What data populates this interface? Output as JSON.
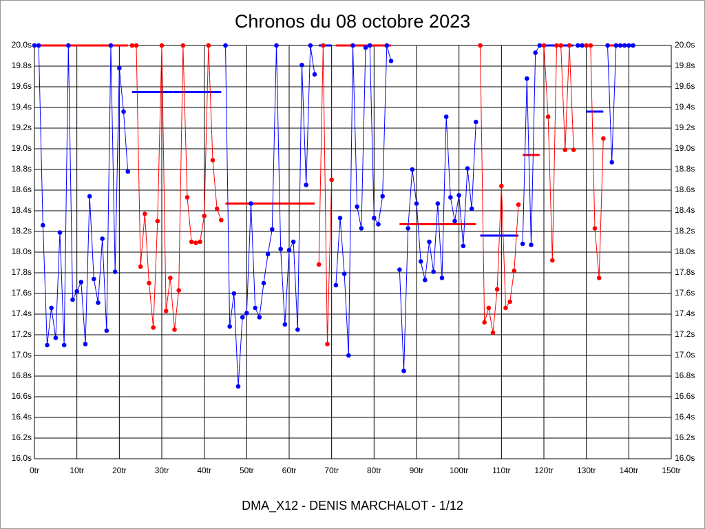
{
  "chart_data": {
    "type": "line",
    "title": "Chronos du 08 octobre 2023",
    "x_label": "DMA_X12 - DENIS MARCHALOT - 1/12",
    "xlim": [
      0,
      150
    ],
    "xticks": [
      {
        "value": 0,
        "label": "0tr"
      },
      {
        "value": 10,
        "label": "10tr"
      },
      {
        "value": 20,
        "label": "20tr"
      },
      {
        "value": 30,
        "label": "30tr"
      },
      {
        "value": 40,
        "label": "40tr"
      },
      {
        "value": 50,
        "label": "50tr"
      },
      {
        "value": 60,
        "label": "60tr"
      },
      {
        "value": 70,
        "label": "70tr"
      },
      {
        "value": 80,
        "label": "80tr"
      },
      {
        "value": 90,
        "label": "90tr"
      },
      {
        "value": 100,
        "label": "100tr"
      },
      {
        "value": 110,
        "label": "110tr"
      },
      {
        "value": 120,
        "label": "120tr"
      },
      {
        "value": 130,
        "label": "130tr"
      },
      {
        "value": 140,
        "label": "140tr"
      },
      {
        "value": 150,
        "label": "150tr"
      }
    ],
    "ylim": [
      16,
      20
    ],
    "yticks": [
      {
        "value": 16,
        "label": "16.0s"
      },
      {
        "value": 16.2,
        "label": "16.2s"
      },
      {
        "value": 16.4,
        "label": "16.4s"
      },
      {
        "value": 16.6,
        "label": "16.6s"
      },
      {
        "value": 16.8,
        "label": "16.8s"
      },
      {
        "value": 17,
        "label": "17.0s"
      },
      {
        "value": 17.2,
        "label": "17.2s"
      },
      {
        "value": 17.4,
        "label": "17.4s"
      },
      {
        "value": 17.6,
        "label": "17.6s"
      },
      {
        "value": 17.8,
        "label": "17.8s"
      },
      {
        "value": 18,
        "label": "18.0s"
      },
      {
        "value": 18.2,
        "label": "18.2s"
      },
      {
        "value": 18.4,
        "label": "18.4s"
      },
      {
        "value": 18.6,
        "label": "18.6s"
      },
      {
        "value": 18.8,
        "label": "18.8s"
      },
      {
        "value": 19,
        "label": "19.0s"
      },
      {
        "value": 19.2,
        "label": "19.2s"
      },
      {
        "value": 19.4,
        "label": "19.4s"
      },
      {
        "value": 19.6,
        "label": "19.6s"
      },
      {
        "value": 19.8,
        "label": "19.8s"
      },
      {
        "value": 20,
        "label": "20.0s"
      }
    ],
    "grid": true,
    "series": [
      {
        "color": "#0000ff",
        "mean": 20,
        "mean_color": "#ff0000",
        "x": [
          0,
          1,
          2,
          3,
          4,
          5,
          6,
          7,
          8,
          9,
          10,
          11,
          12,
          13,
          14,
          15,
          16,
          17,
          18,
          19,
          20,
          21,
          22
        ],
        "values": [
          20,
          20,
          18.26,
          17.1,
          17.46,
          17.17,
          18.19,
          17.1,
          20,
          17.54,
          17.62,
          17.71,
          17.11,
          18.54,
          17.74,
          17.51,
          18.13,
          17.24,
          20,
          17.81,
          19.78,
          19.36,
          18.78
        ]
      },
      {
        "color": "#ff0000",
        "mean": 19.55,
        "mean_color": "#0000ff",
        "x": [
          23,
          24,
          25,
          26,
          27,
          28,
          29,
          30,
          31,
          32,
          33,
          34,
          35,
          36,
          37,
          38,
          39,
          40,
          41,
          42,
          43,
          44
        ],
        "values": [
          20,
          20,
          17.86,
          18.37,
          17.7,
          17.27,
          18.3,
          20,
          17.43,
          17.75,
          17.25,
          17.63,
          20,
          18.53,
          18.1,
          18.09,
          18.1,
          18.35,
          20,
          18.89,
          18.42,
          18.31
        ]
      },
      {
        "color": "#0000ff",
        "mean": 18.47,
        "mean_color": "#ff0000",
        "x": [
          45,
          46,
          47,
          48,
          49,
          50,
          51,
          52,
          53,
          54,
          55,
          56,
          57,
          58,
          59,
          60,
          61,
          62,
          63,
          64,
          65,
          66
        ],
        "values": [
          20,
          17.28,
          17.6,
          16.7,
          17.37,
          17.41,
          18.47,
          17.46,
          17.37,
          17.7,
          17.98,
          18.22,
          20,
          18.03,
          17.3,
          18.02,
          18.1,
          17.25,
          19.81,
          18.65,
          20,
          19.72
        ]
      },
      {
        "color": "#ff0000",
        "mean": 20,
        "mean_color": "#0000ff",
        "x": [
          67,
          68,
          69,
          70
        ],
        "values": [
          17.88,
          20,
          17.11,
          18.7
        ]
      },
      {
        "color": "#0000ff",
        "mean": 20,
        "mean_color": "#ff0000",
        "x": [
          71,
          72,
          73,
          74,
          75,
          76,
          77,
          78,
          79,
          80,
          81,
          82,
          83,
          84
        ],
        "values": [
          17.68,
          18.33,
          17.79,
          17,
          20,
          18.44,
          18.23,
          19.98,
          20,
          18.33,
          18.27,
          18.54,
          20,
          19.85
        ]
      },
      {
        "color": "#0000ff",
        "mean": 18.27,
        "mean_color": "#ff0000",
        "x": [
          86,
          87,
          88,
          89,
          90,
          91,
          92,
          93,
          94,
          95,
          96,
          97,
          98,
          99,
          100,
          101,
          102,
          103,
          104
        ],
        "values": [
          17.83,
          16.85,
          18.23,
          18.8,
          18.47,
          17.91,
          17.73,
          18.1,
          17.81,
          18.47,
          17.75,
          19.31,
          18.53,
          18.3,
          18.55,
          18.06,
          18.81,
          18.42,
          19.26
        ]
      },
      {
        "color": "#ff0000",
        "mean": 18.16,
        "mean_color": "#0000ff",
        "x": [
          105,
          106,
          107,
          108,
          109,
          110,
          111,
          112,
          113,
          114
        ],
        "values": [
          20,
          17.32,
          17.46,
          17.22,
          17.64,
          18.64,
          17.46,
          17.52,
          17.82,
          18.46
        ]
      },
      {
        "color": "#0000ff",
        "mean": 18.94,
        "mean_color": "#ff0000",
        "x": [
          115,
          116,
          117,
          118,
          119
        ],
        "values": [
          18.08,
          19.68,
          18.07,
          19.93,
          20
        ]
      },
      {
        "color": "#ff0000",
        "mean": 20,
        "mean_color": "#0000ff",
        "x": [
          120,
          121,
          122,
          123,
          124,
          125,
          126,
          127
        ],
        "values": [
          20,
          19.31,
          17.92,
          20,
          20,
          18.99,
          20,
          18.99
        ]
      },
      {
        "color": "#0000ff",
        "x": [
          128,
          129
        ],
        "values": [
          20,
          20
        ]
      },
      {
        "color": "#ff0000",
        "mean": 19.36,
        "mean_color": "#0000ff",
        "x": [
          130,
          131,
          132,
          133,
          134
        ],
        "values": [
          20,
          20,
          18.23,
          17.75,
          19.1
        ]
      },
      {
        "color": "#0000ff",
        "mean": 20,
        "mean_color": "#ff0000",
        "x": [
          135,
          136,
          137,
          138,
          139,
          140,
          141
        ],
        "values": [
          20,
          18.87,
          20,
          20,
          20,
          20,
          20
        ]
      }
    ]
  }
}
